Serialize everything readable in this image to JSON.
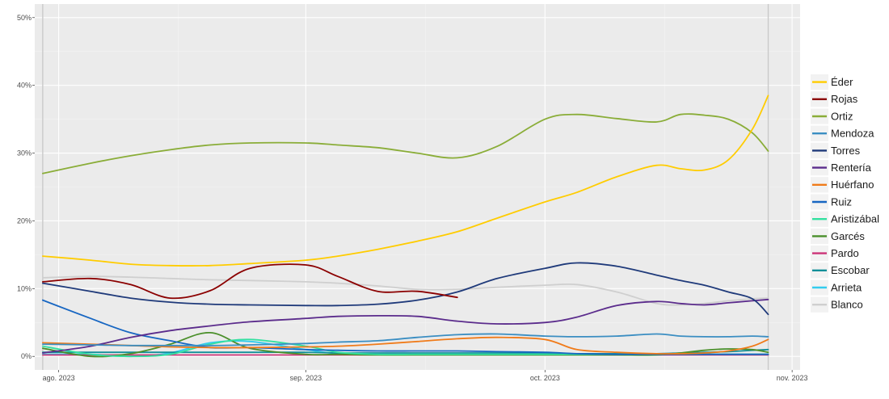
{
  "chart_data": {
    "type": "line",
    "title": "",
    "xlabel": "",
    "ylabel": "",
    "x_ticks": [
      "ago. 2023",
      "sep. 2023",
      "oct. 2023",
      "nov. 2023"
    ],
    "y_ticks": [
      "0%",
      "10%",
      "20%",
      "30%",
      "40%",
      "50%"
    ],
    "ylim": [
      -2,
      52
    ],
    "xlim": [
      "2023-07-29",
      "2023-11-02"
    ],
    "grid": true,
    "legend_position": "right",
    "reference_dates": [
      "2023-07-30",
      "2023-10-29"
    ],
    "x": [
      "2023-07-30",
      "2023-08-05",
      "2023-08-10",
      "2023-08-15",
      "2023-08-20",
      "2023-08-25",
      "2023-09-01",
      "2023-09-05",
      "2023-09-10",
      "2023-09-15",
      "2023-09-20",
      "2023-09-25",
      "2023-10-01",
      "2023-10-05",
      "2023-10-10",
      "2023-10-15",
      "2023-10-18",
      "2023-10-21",
      "2023-10-24",
      "2023-10-27",
      "2023-10-29"
    ],
    "series": [
      {
        "name": "Éder",
        "color": "#ffcc00",
        "values": [
          14.8,
          14.2,
          13.6,
          13.4,
          13.4,
          13.7,
          14.2,
          14.8,
          15.8,
          17.0,
          18.4,
          20.4,
          22.8,
          24.2,
          26.5,
          28.2,
          27.7,
          27.5,
          29.0,
          33.5,
          38.5
        ]
      },
      {
        "name": "Rojas",
        "color": "#8b0000",
        "values": [
          11.0,
          11.5,
          10.6,
          8.6,
          9.7,
          13.0,
          13.5,
          11.8,
          9.6,
          9.6,
          8.7,
          null,
          null,
          null,
          null,
          null,
          null,
          null,
          null,
          null,
          null
        ]
      },
      {
        "name": "Ortiz",
        "color": "#8aad38",
        "values": [
          27.0,
          28.5,
          29.6,
          30.5,
          31.2,
          31.5,
          31.5,
          31.2,
          30.8,
          30.0,
          29.3,
          31.0,
          35.0,
          35.7,
          35.1,
          34.6,
          35.7,
          35.6,
          35.0,
          33.0,
          30.3
        ]
      },
      {
        "name": "Mendoza",
        "color": "#3b8ec2",
        "values": [
          1.8,
          1.7,
          1.6,
          1.6,
          1.6,
          1.7,
          1.9,
          2.1,
          2.3,
          2.8,
          3.2,
          3.3,
          3.0,
          2.9,
          3.0,
          3.3,
          3.0,
          2.9,
          2.9,
          3.0,
          2.9
        ]
      },
      {
        "name": "Torres",
        "color": "#1f3a7a",
        "values": [
          10.8,
          9.6,
          8.6,
          8.0,
          7.7,
          7.6,
          7.5,
          7.5,
          7.7,
          8.3,
          9.5,
          11.5,
          13.0,
          13.8,
          13.3,
          12.0,
          11.2,
          10.5,
          9.5,
          8.5,
          6.2
        ]
      },
      {
        "name": "Rentería",
        "color": "#5b2c8c",
        "values": [
          0.5,
          1.5,
          2.8,
          3.8,
          4.5,
          5.1,
          5.6,
          5.9,
          6.0,
          5.9,
          5.2,
          4.8,
          5.0,
          5.8,
          7.5,
          8.1,
          7.8,
          7.6,
          7.9,
          8.2,
          8.4
        ]
      },
      {
        "name": "Huérfano",
        "color": "#f07b1a",
        "values": [
          2.0,
          1.8,
          1.6,
          1.4,
          1.3,
          1.3,
          1.4,
          1.5,
          1.8,
          2.2,
          2.6,
          2.8,
          2.5,
          1.0,
          0.6,
          0.4,
          0.4,
          0.5,
          0.8,
          1.5,
          2.5
        ]
      },
      {
        "name": "Ruiz",
        "color": "#1766c2",
        "values": [
          8.3,
          5.6,
          3.5,
          2.3,
          1.3,
          1.3,
          1.0,
          0.9,
          0.8,
          0.8,
          0.8,
          0.7,
          0.6,
          0.4,
          0.3,
          0.3,
          0.3,
          0.3,
          0.3,
          0.3,
          0.3
        ]
      },
      {
        "name": "Aristizábal",
        "color": "#33e0a0",
        "values": [
          1.5,
          0.3,
          0.0,
          0.3,
          1.8,
          2.5,
          1.5,
          0.6,
          0.3,
          0.3,
          0.3,
          0.3,
          0.3,
          0.3,
          0.3,
          0.3,
          0.3,
          0.3,
          0.3,
          0.3,
          0.3
        ]
      },
      {
        "name": "Garcés",
        "color": "#4a8f2a",
        "values": [
          1.2,
          0.0,
          0.4,
          1.8,
          3.5,
          1.2,
          0.3,
          0.3,
          0.2,
          0.2,
          0.2,
          0.2,
          0.2,
          0.2,
          0.2,
          0.2,
          0.5,
          0.9,
          1.1,
          1.0,
          0.6
        ]
      },
      {
        "name": "Pardo",
        "color": "#cc3377",
        "values": [
          0.2,
          0.2,
          0.2,
          0.2,
          0.2,
          0.2,
          0.2,
          0.2,
          0.2,
          0.2,
          0.2,
          0.2,
          0.2,
          0.2,
          0.2,
          0.2,
          0.2,
          0.2,
          0.2,
          0.2,
          0.2
        ]
      },
      {
        "name": "Escobar",
        "color": "#138f99",
        "values": [
          0.6,
          0.6,
          0.6,
          0.6,
          0.6,
          0.6,
          0.6,
          0.5,
          0.5,
          0.5,
          0.5,
          0.5,
          0.5,
          0.4,
          0.4,
          0.4,
          0.5,
          0.6,
          0.7,
          0.9,
          1.0
        ]
      },
      {
        "name": "Arrieta",
        "color": "#33ccee",
        "values": [
          0.3,
          0.3,
          0.0,
          0.5,
          2.0,
          2.2,
          1.0,
          0.4,
          0.3,
          0.3,
          0.3,
          0.3,
          0.3,
          0.3,
          0.3,
          0.3,
          0.3,
          0.3,
          0.3,
          0.3,
          0.3
        ]
      },
      {
        "name": "Blanco",
        "color": "#cfcfcf",
        "values": [
          11.6,
          11.8,
          11.7,
          11.5,
          11.3,
          11.2,
          11.0,
          10.8,
          10.4,
          9.9,
          9.9,
          10.2,
          10.5,
          10.6,
          9.5,
          7.8,
          7.6,
          7.8,
          8.2,
          8.5,
          8.6
        ]
      }
    ]
  }
}
